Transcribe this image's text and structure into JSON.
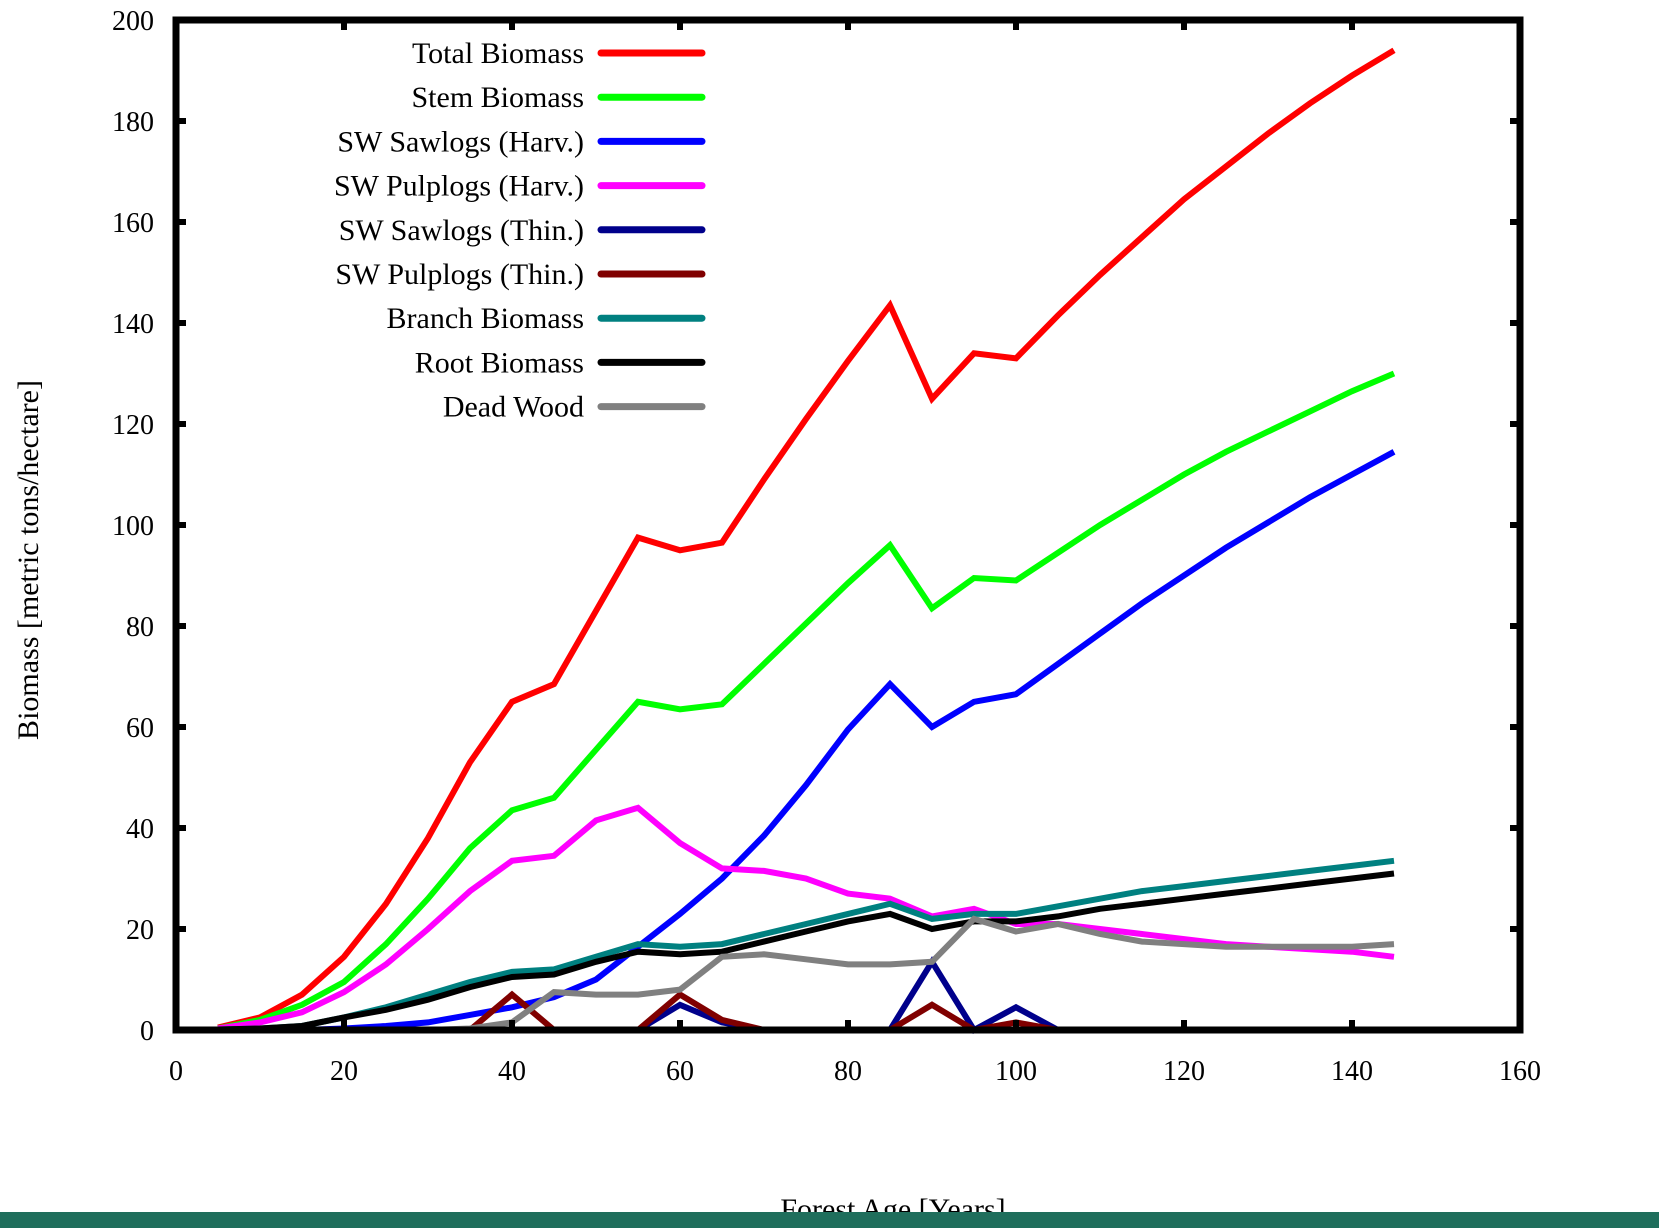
{
  "chart_data": {
    "type": "line",
    "title": "",
    "xlabel": "Forest Age [Years]",
    "ylabel": "Biomass [metric tons/hectare]",
    "xlim": [
      0,
      160
    ],
    "ylim": [
      0,
      200
    ],
    "xticks": [
      0,
      20,
      40,
      60,
      80,
      100,
      120,
      140,
      160
    ],
    "yticks": [
      0,
      20,
      40,
      60,
      80,
      100,
      120,
      140,
      160,
      180,
      200
    ],
    "grid": false,
    "legend_position": "top-left",
    "x": [
      5,
      10,
      15,
      20,
      25,
      30,
      35,
      40,
      45,
      50,
      55,
      60,
      65,
      70,
      75,
      80,
      85,
      90,
      95,
      100,
      105,
      110,
      115,
      120,
      125,
      130,
      135,
      140,
      145
    ],
    "series": [
      {
        "name": "Total Biomass",
        "color": "#ff0000",
        "values": [
          0.5,
          2.5,
          7,
          14.5,
          25,
          38,
          53,
          65,
          68.5,
          83,
          97.5,
          95,
          96.5,
          109,
          121,
          132.5,
          143.5,
          125,
          134,
          133,
          141.5,
          149.5,
          157,
          164.5,
          171,
          177.5,
          183.5,
          189,
          194
        ]
      },
      {
        "name": "Stem Biomass",
        "color": "#00ff00",
        "values": [
          0.3,
          2,
          5,
          9.5,
          17,
          26,
          36,
          43.5,
          46,
          55.5,
          65,
          63.5,
          64.5,
          72.5,
          80.5,
          88.5,
          96,
          83.5,
          89.5,
          89,
          94.5,
          100,
          105,
          110,
          114.5,
          118.5,
          122.5,
          126.5,
          130
        ]
      },
      {
        "name": "SW Sawlogs (Harv.)",
        "color": "#0000ff",
        "values": [
          0,
          0,
          0,
          0.3,
          0.8,
          1.5,
          3,
          4.5,
          6.5,
          10,
          16.5,
          23,
          30,
          38.5,
          48.5,
          59.5,
          68.5,
          60,
          65,
          66.5,
          72.5,
          78.5,
          84.5,
          90,
          95.5,
          100.5,
          105.5,
          110,
          114.5
        ]
      },
      {
        "name": "SW Pulplogs (Harv.)",
        "color": "#ff00ff",
        "values": [
          0.3,
          1.5,
          3.5,
          7.5,
          13,
          20,
          27.5,
          33.5,
          34.5,
          41.5,
          44,
          37,
          32,
          31.5,
          30,
          27,
          26,
          22.5,
          24,
          21,
          21,
          20,
          19,
          18,
          17,
          16.5,
          16,
          15.5,
          14.5
        ]
      },
      {
        "name": "SW Sawlogs (Thin.)",
        "color": "#00008b",
        "values": [
          0,
          0,
          0,
          0,
          0,
          0,
          0,
          0,
          0,
          0,
          0,
          5,
          1.5,
          0,
          0,
          0,
          0,
          13.5,
          0,
          4.5,
          0,
          0,
          0,
          0,
          0,
          0,
          0,
          0,
          0
        ]
      },
      {
        "name": "SW Pulplogs (Thin.)",
        "color": "#800000",
        "values": [
          0,
          0,
          0,
          0,
          0,
          0,
          0,
          7,
          0,
          0,
          0,
          7,
          2,
          0,
          0,
          0,
          0,
          5,
          0,
          1.5,
          0,
          0,
          0,
          0,
          0,
          0,
          0,
          0,
          0
        ]
      },
      {
        "name": "Branch Biomass",
        "color": "#008080",
        "values": [
          0.1,
          0.3,
          0.8,
          2.5,
          4.5,
          7,
          9.5,
          11.5,
          12,
          14.5,
          17,
          16.5,
          17,
          19,
          21,
          23,
          25,
          22,
          23,
          23,
          24.5,
          26,
          27.5,
          28.5,
          29.5,
          30.5,
          31.5,
          32.5,
          33.5
        ]
      },
      {
        "name": "Root Biomass",
        "color": "#000000",
        "values": [
          0.1,
          0.3,
          0.8,
          2.5,
          4,
          6,
          8.5,
          10.5,
          11,
          13.5,
          15.5,
          15,
          15.5,
          17.5,
          19.5,
          21.5,
          23,
          20,
          21.5,
          21.5,
          22.5,
          24,
          25,
          26,
          27,
          28,
          29,
          30,
          31
        ]
      },
      {
        "name": "Dead Wood",
        "color": "#808080",
        "values": [
          0,
          0,
          0,
          0,
          0,
          0,
          0.3,
          1.5,
          7.5,
          7,
          7,
          8,
          14.5,
          15,
          14,
          13,
          13,
          13.5,
          22,
          19.5,
          21,
          19,
          17.5,
          17,
          16.5,
          16.5,
          16.5,
          16.5,
          17
        ]
      }
    ]
  }
}
